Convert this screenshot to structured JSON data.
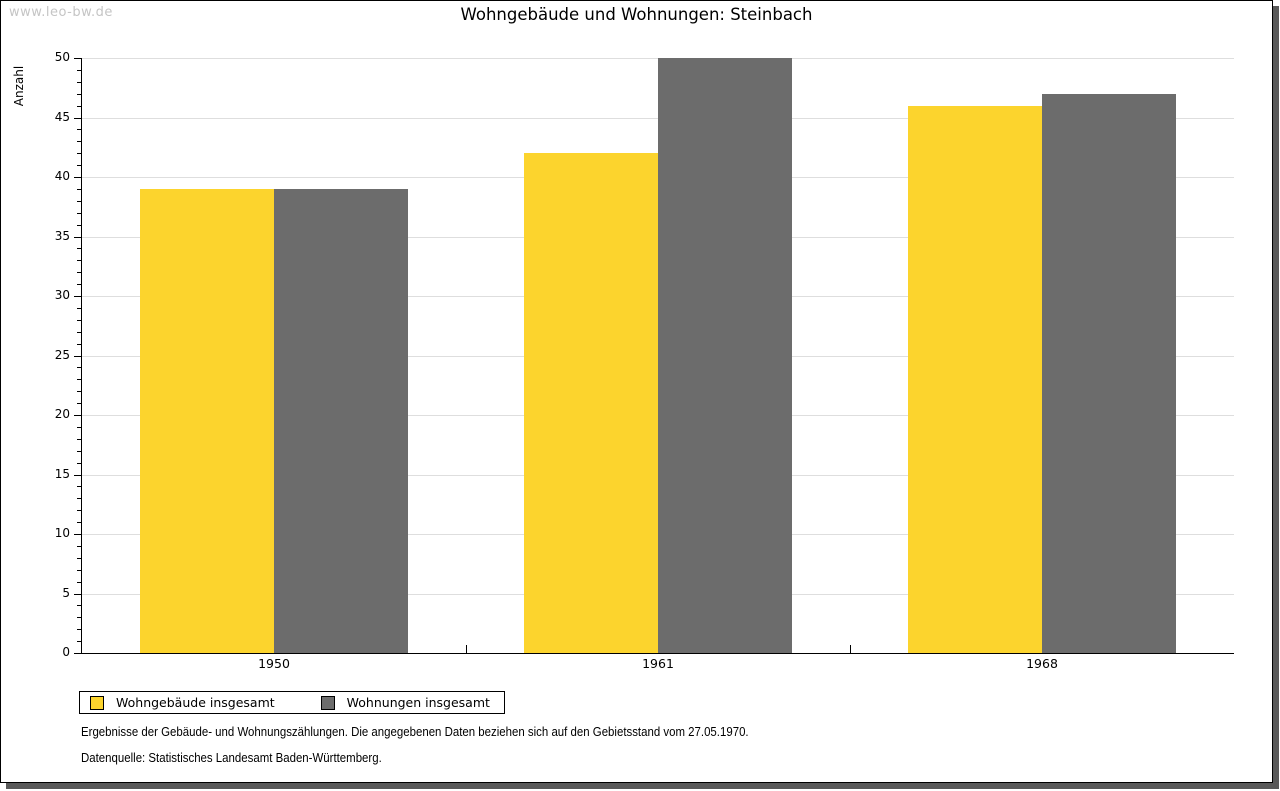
{
  "watermark": "www.leo-bw.de",
  "title": "Wohngebäude und Wohnungen: Steinbach",
  "chart_data": {
    "type": "bar",
    "categories": [
      "1950",
      "1961",
      "1968"
    ],
    "series": [
      {
        "name": "Wohngebäude insgesamt",
        "color": "#FCD42D",
        "values": [
          39,
          42,
          46
        ]
      },
      {
        "name": "Wohnungen insgesamt",
        "color": "#6C6C6C",
        "values": [
          39,
          50,
          47
        ]
      }
    ],
    "title": "Wohngebäude und Wohnungen: Steinbach",
    "xlabel": "",
    "ylabel": "Anzahl",
    "ylim": [
      0,
      50
    ],
    "ytick_major": 5,
    "ytick_minor": 1,
    "grid": true,
    "legend_position": "bottom-left",
    "legend_labels": [
      "Wohngebäude insgesamt",
      "Wohnungen insgesamt"
    ]
  },
  "footnotes": [
    "Ergebnisse der Gebäude- und Wohnungszählungen. Die angegebenen Daten beziehen sich auf den Gebietsstand vom 27.05.1970.",
    "Datenquelle: Statistisches Landesamt Baden-Württemberg."
  ],
  "colors": {
    "bar_yellow": "#FCD42D",
    "bar_gray": "#6C6C6C",
    "gridline": "#DEDEDE",
    "watermark": "#C5C5C5",
    "panel_shadow": "#595959",
    "axis": "#000000"
  }
}
